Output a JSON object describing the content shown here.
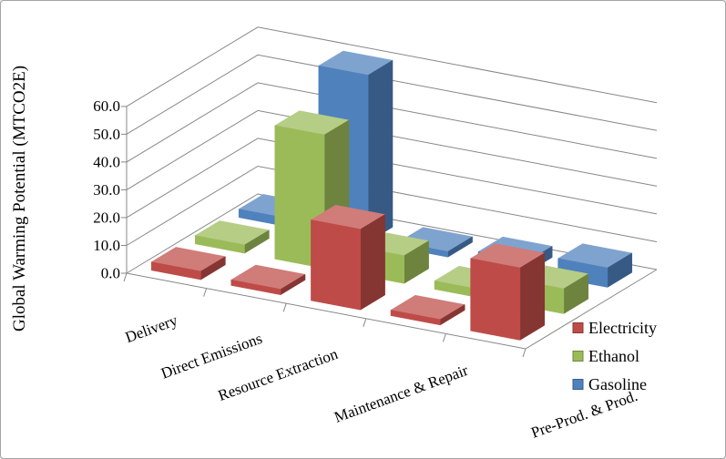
{
  "window": {
    "background": "#ffffff",
    "frame_border": "#a3a3a3"
  },
  "chart_data": {
    "type": "bar",
    "projection": "3d-column",
    "title": "",
    "ylabel": "Global Warming Potential (MTCO2E)",
    "ylim": [
      0,
      60
    ],
    "ytick_step": 10,
    "ytick_labels": [
      "0.0",
      "10.0",
      "20.0",
      "30.0",
      "40.0",
      "50.0",
      "60.0"
    ],
    "grid": true,
    "grid_color": "#878787",
    "legend_position": "right",
    "categories": [
      "Delivery",
      "Direct Emissions",
      "Resource Extraction",
      "Maintenance & Repair",
      "Pre-Prod. & Prod."
    ],
    "series": [
      {
        "name": "Electricity",
        "color": "#BE4B48",
        "values": [
          3,
          2,
          29,
          2,
          26
        ]
      },
      {
        "name": "Ethanol",
        "color": "#9BBB59",
        "values": [
          3,
          48,
          10,
          3,
          9
        ]
      },
      {
        "name": "Gasoline",
        "color": "#4F81BD",
        "values": [
          3,
          60,
          2,
          4,
          7
        ]
      }
    ]
  }
}
